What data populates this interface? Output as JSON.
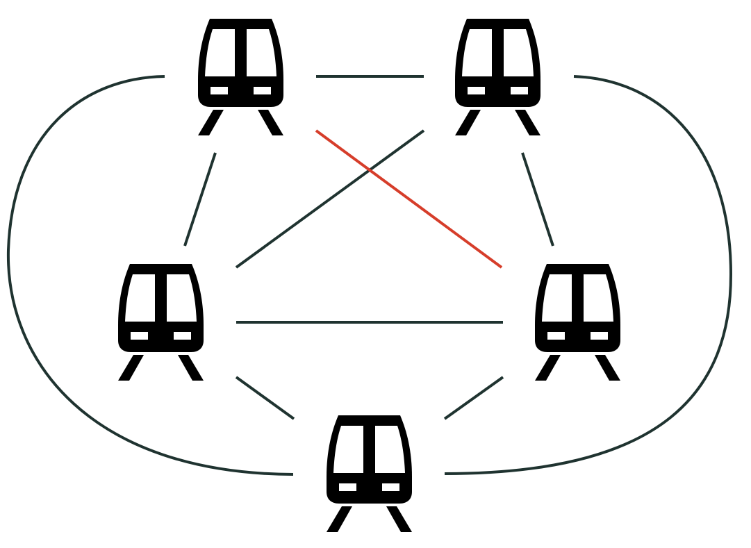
{
  "diagram": {
    "type": "network-graph",
    "node_icon": "train-front-icon",
    "colors": {
      "edge": "#1f3330",
      "highlight_edge": "#d63d2a",
      "icon": "#000000",
      "background": "#ffffff"
    },
    "nodes": [
      {
        "id": "top-left",
        "icon": "train-front-icon"
      },
      {
        "id": "top-right",
        "icon": "train-front-icon"
      },
      {
        "id": "middle-left",
        "icon": "train-front-icon"
      },
      {
        "id": "middle-right",
        "icon": "train-front-icon"
      },
      {
        "id": "bottom",
        "icon": "train-front-icon"
      }
    ],
    "edges": [
      {
        "from": "top-left",
        "to": "top-right",
        "style": "straight",
        "highlighted": false
      },
      {
        "from": "top-left",
        "to": "middle-left",
        "style": "straight",
        "highlighted": false
      },
      {
        "from": "top-right",
        "to": "middle-right",
        "style": "straight",
        "highlighted": false
      },
      {
        "from": "top-right",
        "to": "middle-left",
        "style": "straight",
        "highlighted": false
      },
      {
        "from": "top-left",
        "to": "middle-right",
        "style": "straight",
        "highlighted": true
      },
      {
        "from": "middle-left",
        "to": "middle-right",
        "style": "straight",
        "highlighted": false
      },
      {
        "from": "middle-left",
        "to": "bottom",
        "style": "straight",
        "highlighted": false
      },
      {
        "from": "middle-right",
        "to": "bottom",
        "style": "straight",
        "highlighted": false
      },
      {
        "from": "top-left",
        "to": "bottom",
        "style": "curved",
        "highlighted": false
      },
      {
        "from": "top-right",
        "to": "bottom",
        "style": "curved",
        "highlighted": false
      }
    ]
  }
}
